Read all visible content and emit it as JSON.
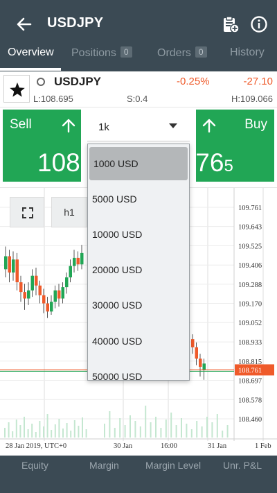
{
  "header": {
    "title": "USDJPY",
    "icons": [
      "back-arrow-icon",
      "clipboard-add-icon",
      "info-icon"
    ]
  },
  "tabs": [
    {
      "label": "Overview",
      "active": true
    },
    {
      "label": "Positions",
      "badge": "0"
    },
    {
      "label": "Orders",
      "badge": "0"
    },
    {
      "label": "History"
    }
  ],
  "instrument": {
    "name": "USDJPY",
    "change_pct": "-0.25%",
    "change_abs": "-27.10",
    "low": "L:108.695",
    "spread": "S:0.4",
    "high": "H:109.066"
  },
  "trade": {
    "sell_label": "Sell",
    "buy_label": "Buy",
    "sell_price_main": "108.",
    "buy_price_main": ".76",
    "buy_price_small": "5",
    "color": "#21a655"
  },
  "quantity": {
    "selected": "1k",
    "options": [
      "1000 USD",
      "5000 USD",
      "10000 USD",
      "20000 USD",
      "30000 USD",
      "40000 USD",
      "50000 USD"
    ],
    "highlighted": "1000 USD"
  },
  "chart": {
    "timeframe": "h1",
    "current_price": "108.761",
    "current_price_color": "#ef5a2a"
  },
  "chart_data": {
    "type": "candlestick",
    "y_ticks": [
      "109.761",
      "109.643",
      "109.525",
      "109.406",
      "109.288",
      "109.170",
      "109.052",
      "108.933",
      "108.815",
      "108.697",
      "108.578",
      "108.460"
    ],
    "x_ticks": [
      "28 Jan 2019, UTC+0",
      "30 Jan",
      "16:00",
      "31 Jan",
      "1 Feb"
    ],
    "ylim": [
      108.4,
      109.8
    ],
    "grid": true,
    "candles_left": [
      {
        "o": 109.38,
        "c": 109.46,
        "h": 109.52,
        "l": 109.33
      },
      {
        "o": 109.46,
        "c": 109.36,
        "h": 109.5,
        "l": 109.3
      },
      {
        "o": 109.36,
        "c": 109.44,
        "h": 109.49,
        "l": 109.31
      },
      {
        "o": 109.44,
        "c": 109.3,
        "h": 109.48,
        "l": 109.25
      },
      {
        "o": 109.3,
        "c": 109.24,
        "h": 109.34,
        "l": 109.18
      },
      {
        "o": 109.24,
        "c": 109.2,
        "h": 109.29,
        "l": 109.13
      },
      {
        "o": 109.2,
        "c": 109.25,
        "h": 109.3,
        "l": 109.16
      },
      {
        "o": 109.25,
        "c": 109.34,
        "h": 109.38,
        "l": 109.21
      },
      {
        "o": 109.34,
        "c": 109.28,
        "h": 109.39,
        "l": 109.22
      },
      {
        "o": 109.28,
        "c": 109.22,
        "h": 109.31,
        "l": 109.17
      },
      {
        "o": 109.22,
        "c": 109.17,
        "h": 109.26,
        "l": 109.11
      },
      {
        "o": 109.17,
        "c": 109.12,
        "h": 109.21,
        "l": 109.08
      },
      {
        "o": 109.12,
        "c": 109.18,
        "h": 109.22,
        "l": 109.1
      },
      {
        "o": 109.18,
        "c": 109.25,
        "h": 109.28,
        "l": 109.14
      },
      {
        "o": 109.25,
        "c": 109.2,
        "h": 109.29,
        "l": 109.15
      },
      {
        "o": 109.2,
        "c": 109.27,
        "h": 109.3,
        "l": 109.17
      },
      {
        "o": 109.27,
        "c": 109.33,
        "h": 109.36,
        "l": 109.23
      },
      {
        "o": 109.33,
        "c": 109.4,
        "h": 109.44,
        "l": 109.3
      },
      {
        "o": 109.4,
        "c": 109.45,
        "h": 109.5,
        "l": 109.36
      },
      {
        "o": 109.45,
        "c": 109.41,
        "h": 109.49,
        "l": 109.37
      },
      {
        "o": 109.41,
        "c": 109.48,
        "h": 109.53,
        "l": 109.38
      }
    ],
    "candles_right": [
      {
        "o": 108.95,
        "c": 108.9,
        "h": 108.98,
        "l": 108.86
      },
      {
        "o": 108.9,
        "c": 108.83,
        "h": 108.93,
        "l": 108.79
      },
      {
        "o": 108.83,
        "c": 108.78,
        "h": 108.86,
        "l": 108.72
      },
      {
        "o": 108.76,
        "c": 108.8,
        "h": 108.83,
        "l": 108.7
      }
    ],
    "volume_left": [
      14,
      22,
      9,
      26,
      18,
      30,
      12,
      20,
      8,
      24,
      16,
      34,
      11,
      19,
      27,
      13,
      21,
      10,
      25,
      17,
      29,
      12
    ],
    "volume_right": [
      20,
      38,
      14,
      28,
      18,
      32,
      24,
      16,
      46,
      22,
      30,
      14,
      26,
      36,
      18,
      28,
      20,
      12,
      24,
      16,
      30,
      22,
      34,
      10,
      18
    ]
  },
  "bottom_bar": {
    "labels": [
      "Equity",
      "Margin",
      "Margin Level",
      "Unr. P&L"
    ]
  }
}
